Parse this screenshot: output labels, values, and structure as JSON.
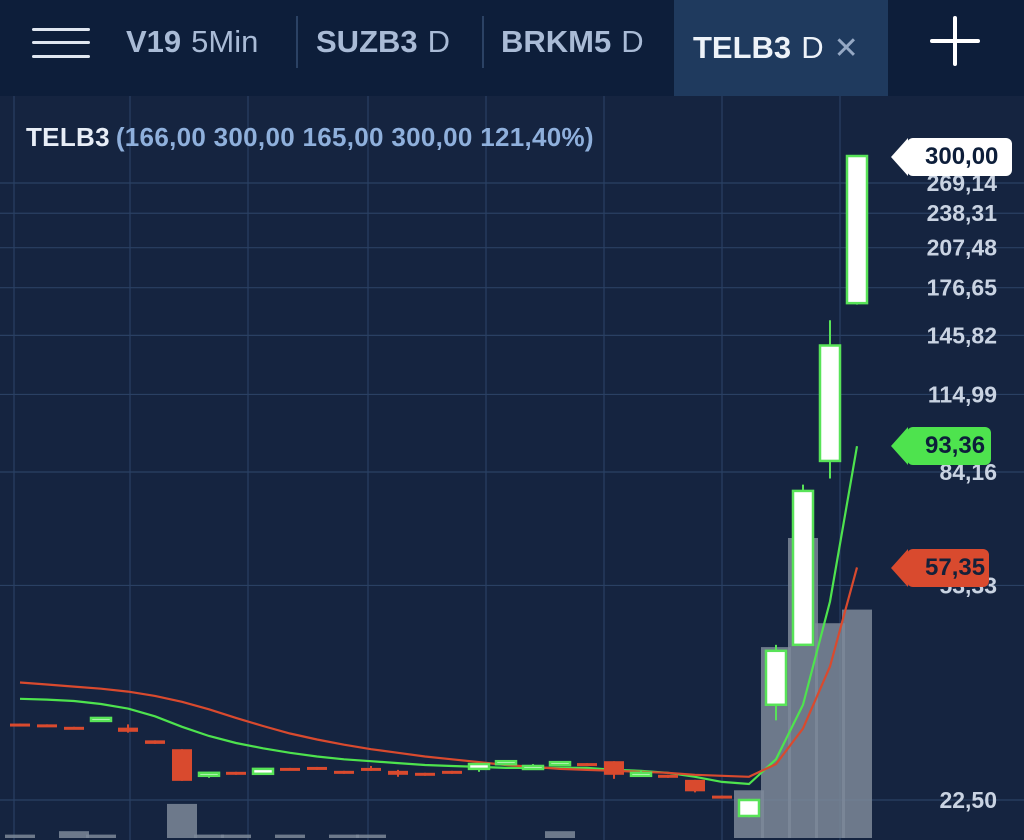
{
  "tabs": [
    {
      "symbol": "V19",
      "period": "5Min",
      "active": false
    },
    {
      "symbol": "SUZB3",
      "period": "D",
      "active": false
    },
    {
      "symbol": "BRKM5",
      "period": "D",
      "active": false
    },
    {
      "symbol": "TELB3",
      "period": "D",
      "active": true
    }
  ],
  "icons": {
    "menu": "hamburger-menu-icon",
    "close": "close-icon",
    "add": "plus-icon"
  },
  "legend": {
    "symbol": "TELB3",
    "values": "(166,00 300,00 165,00 300,00 121,40%)"
  },
  "price_tags": {
    "last": "300,00",
    "ma_fast": "93,36",
    "ma_slow": "57,35"
  },
  "colors": {
    "background": "#152440",
    "header": "#0d1e3a",
    "active_tab": "#1f3a5e",
    "up_candle": "#58e358",
    "down_candle": "#d94a2e",
    "ma_fast": "#4ee34e",
    "ma_slow": "#d94a2e",
    "volume": "#7d8899",
    "axis_text": "#c9d3e2"
  },
  "chart_data": {
    "type": "candlestick",
    "symbol": "TELB3",
    "title": "TELB3 D",
    "scale": "log",
    "y_axis_labels": [
      "269,14",
      "238,31",
      "207,48",
      "176,65",
      "145,82",
      "114,99",
      "84,16",
      "53,33",
      "22,50"
    ],
    "ylim": [
      19,
      300
    ],
    "candles": [
      {
        "open": 30.6,
        "high": 30.6,
        "low": 30.4,
        "close": 30.4
      },
      {
        "open": 30.5,
        "high": 30.5,
        "low": 30.2,
        "close": 30.2
      },
      {
        "open": 30.2,
        "high": 30.2,
        "low": 30.0,
        "close": 30.0
      },
      {
        "open": 31.2,
        "high": 31.4,
        "low": 31.0,
        "close": 31.3
      },
      {
        "open": 30.1,
        "high": 30.5,
        "low": 29.5,
        "close": 29.6
      },
      {
        "open": 28.6,
        "high": 28.6,
        "low": 28.2,
        "close": 28.2
      },
      {
        "open": 27.6,
        "high": 27.6,
        "low": 24.3,
        "close": 24.3
      },
      {
        "open": 25.0,
        "high": 25.2,
        "low": 24.6,
        "close": 25.1
      },
      {
        "open": 25.2,
        "high": 25.2,
        "low": 24.9,
        "close": 25.0
      },
      {
        "open": 25.0,
        "high": 25.5,
        "low": 24.9,
        "close": 25.5
      },
      {
        "open": 25.6,
        "high": 25.6,
        "low": 25.4,
        "close": 25.4
      },
      {
        "open": 25.7,
        "high": 25.7,
        "low": 25.4,
        "close": 25.4
      },
      {
        "open": 25.3,
        "high": 25.3,
        "low": 25.0,
        "close": 25.0
      },
      {
        "open": 25.6,
        "high": 25.8,
        "low": 25.3,
        "close": 25.3
      },
      {
        "open": 25.3,
        "high": 25.4,
        "low": 24.7,
        "close": 24.9
      },
      {
        "open": 25.1,
        "high": 25.1,
        "low": 24.8,
        "close": 24.8
      },
      {
        "open": 25.3,
        "high": 25.3,
        "low": 25.0,
        "close": 25.0
      },
      {
        "open": 25.5,
        "high": 26.0,
        "low": 25.2,
        "close": 26.0
      },
      {
        "open": 26.3,
        "high": 26.3,
        "low": 26.0,
        "close": 26.3
      },
      {
        "open": 25.8,
        "high": 26.0,
        "low": 25.6,
        "close": 25.8
      },
      {
        "open": 26.1,
        "high": 26.3,
        "low": 25.9,
        "close": 26.2
      },
      {
        "open": 26.1,
        "high": 26.1,
        "low": 25.9,
        "close": 25.9
      },
      {
        "open": 26.3,
        "high": 26.3,
        "low": 24.5,
        "close": 24.9
      },
      {
        "open": 25.1,
        "high": 25.3,
        "low": 24.9,
        "close": 25.1
      },
      {
        "open": 24.9,
        "high": 24.9,
        "low": 24.6,
        "close": 24.6
      },
      {
        "open": 24.4,
        "high": 24.4,
        "low": 23.2,
        "close": 23.3
      },
      {
        "open": 22.9,
        "high": 22.9,
        "low": 22.7,
        "close": 22.7
      },
      {
        "open": 21.1,
        "high": 22.6,
        "low": 21.0,
        "close": 22.5
      },
      {
        "open": 33.0,
        "high": 42.0,
        "low": 31.0,
        "close": 41.0
      },
      {
        "open": 42.0,
        "high": 80.0,
        "low": 42.0,
        "close": 78.0
      },
      {
        "open": 88.0,
        "high": 155.0,
        "low": 82.0,
        "close": 140.0
      },
      {
        "open": 166.0,
        "high": 300.0,
        "low": 165.0,
        "close": 300.0
      }
    ],
    "volume": [
      1,
      0,
      2,
      1,
      0,
      0,
      10,
      1,
      1,
      0,
      1,
      0,
      1,
      1,
      0,
      0,
      0,
      0,
      0,
      0,
      2,
      0,
      0,
      0,
      0,
      0,
      0,
      14,
      56,
      88,
      63,
      67
    ],
    "moving_averages": [
      {
        "name": "fast",
        "values": [
          33.8,
          33.7,
          33.5,
          33.1,
          32.5,
          31.5,
          30.2,
          29.1,
          28.3,
          27.7,
          27.2,
          26.8,
          26.5,
          26.3,
          26.1,
          25.9,
          25.8,
          25.7,
          25.6,
          25.6,
          25.6,
          25.6,
          25.4,
          25.3,
          25.1,
          24.7,
          24.2,
          24.0,
          26.5,
          33.0,
          50.0,
          93.36
        ]
      },
      {
        "name": "slow",
        "values": [
          36.1,
          35.8,
          35.5,
          35.2,
          34.8,
          34.2,
          33.4,
          32.4,
          31.3,
          30.3,
          29.4,
          28.7,
          28.1,
          27.6,
          27.2,
          26.8,
          26.5,
          26.2,
          25.9,
          25.7,
          25.5,
          25.4,
          25.3,
          25.2,
          25.1,
          24.9,
          24.8,
          24.7,
          26.0,
          30.0,
          38.5,
          57.35
        ]
      }
    ]
  }
}
